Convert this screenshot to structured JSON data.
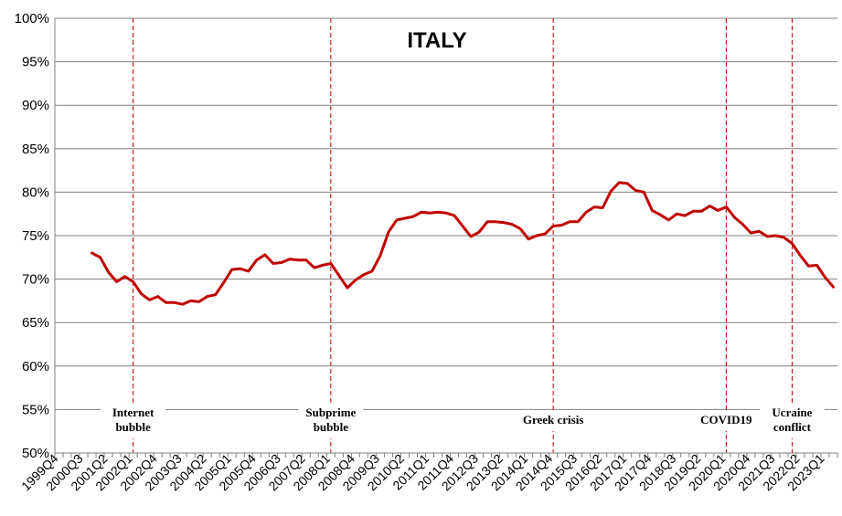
{
  "chart_data": {
    "type": "line",
    "title": "ITALY",
    "xlabel": "",
    "ylabel": "",
    "ylim": [
      0.5,
      1.0
    ],
    "yticks": [
      "50%",
      "55%",
      "60%",
      "65%",
      "70%",
      "75%",
      "80%",
      "85%",
      "90%",
      "95%",
      "100%"
    ],
    "x_tick_labels": [
      "1999Q4",
      "2000Q3",
      "2001Q2",
      "2002Q1",
      "2002Q4",
      "2003Q3",
      "2004Q2",
      "2005Q1",
      "2005Q4",
      "2006Q3",
      "2007Q2",
      "2008Q1",
      "2008Q4",
      "2009Q3",
      "2010Q2",
      "2011Q1",
      "2011Q4",
      "2012Q3",
      "2013Q2",
      "2014Q1",
      "2014Q4",
      "2015Q3",
      "2016Q2",
      "2017Q1",
      "2017Q4",
      "2018Q3",
      "2019Q2",
      "2020Q1",
      "2020Q4",
      "2021Q3",
      "2022Q2",
      "2023Q1"
    ],
    "grid": "horizontal",
    "colors": {
      "series": "#C00000",
      "event_lines": "#C00000",
      "grid": "#808080"
    },
    "series": [
      {
        "x": [
          "2000Q4",
          "2001Q1",
          "2001Q2",
          "2001Q3",
          "2001Q4",
          "2002Q1",
          "2002Q2",
          "2002Q3",
          "2002Q4",
          "2003Q1",
          "2003Q2",
          "2003Q3",
          "2003Q4",
          "2004Q1",
          "2004Q2",
          "2004Q3",
          "2004Q4",
          "2005Q1",
          "2005Q2",
          "2005Q3",
          "2005Q4",
          "2006Q1",
          "2006Q2",
          "2006Q3",
          "2006Q4",
          "2007Q1",
          "2007Q2",
          "2007Q3",
          "2007Q4",
          "2008Q1",
          "2008Q2",
          "2008Q3",
          "2008Q4",
          "2009Q1",
          "2009Q2",
          "2009Q3",
          "2009Q4",
          "2010Q1",
          "2010Q2",
          "2010Q3",
          "2010Q4",
          "2011Q1",
          "2011Q2",
          "2011Q3",
          "2011Q4",
          "2012Q1",
          "2012Q2",
          "2012Q3",
          "2012Q4",
          "2013Q1",
          "2013Q2",
          "2013Q3",
          "2013Q4",
          "2014Q1",
          "2014Q2",
          "2014Q3",
          "2014Q4",
          "2015Q1",
          "2015Q2",
          "2015Q3",
          "2015Q4",
          "2016Q1",
          "2016Q2",
          "2016Q3",
          "2016Q4",
          "2017Q1",
          "2017Q2",
          "2017Q3",
          "2017Q4",
          "2018Q1",
          "2018Q2",
          "2018Q3",
          "2018Q4",
          "2019Q1",
          "2019Q2",
          "2019Q3",
          "2019Q4",
          "2020Q1",
          "2020Q2",
          "2020Q3",
          "2020Q4",
          "2021Q1",
          "2021Q2",
          "2021Q3",
          "2021Q4",
          "2022Q1",
          "2022Q2",
          "2022Q3",
          "2022Q4",
          "2023Q1",
          "2023Q2"
        ],
        "values": [
          0.73,
          0.725,
          0.708,
          0.697,
          0.703,
          0.697,
          0.683,
          0.676,
          0.68,
          0.673,
          0.673,
          0.671,
          0.675,
          0.674,
          0.68,
          0.682,
          0.696,
          0.711,
          0.712,
          0.709,
          0.722,
          0.728,
          0.718,
          0.719,
          0.723,
          0.722,
          0.722,
          0.713,
          0.716,
          0.718,
          0.704,
          0.69,
          0.699,
          0.705,
          0.709,
          0.727,
          0.754,
          0.768,
          0.77,
          0.772,
          0.777,
          0.776,
          0.777,
          0.776,
          0.773,
          0.761,
          0.749,
          0.754,
          0.766,
          0.766,
          0.765,
          0.763,
          0.758,
          0.746,
          0.75,
          0.752,
          0.761,
          0.762,
          0.766,
          0.766,
          0.777,
          0.783,
          0.782,
          0.801,
          0.811,
          0.81,
          0.802,
          0.8,
          0.779,
          0.774,
          0.768,
          0.775,
          0.773,
          0.778,
          0.778,
          0.784,
          0.779,
          0.783,
          0.771,
          0.763,
          0.753,
          0.755,
          0.749,
          0.75,
          0.748,
          0.741,
          0.727,
          0.715,
          0.716,
          0.702,
          0.691
        ]
      }
    ],
    "annotations": [
      {
        "x": "2002Q1",
        "lines": [
          "Internet",
          "bubble"
        ]
      },
      {
        "x": "2008Q1",
        "lines": [
          "Subprime",
          "bubble"
        ]
      },
      {
        "x": "2014Q4",
        "lines": [
          "Greek crisis"
        ]
      },
      {
        "x": "2020Q1",
        "lines": [
          "COVID19"
        ]
      },
      {
        "x": "2022Q1",
        "lines": [
          "Ucraine",
          "conflict"
        ]
      }
    ]
  }
}
